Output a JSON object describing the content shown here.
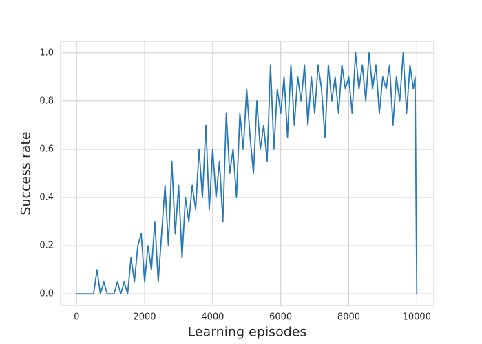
{
  "chart_data": {
    "type": "line",
    "x_label": "Learning episodes",
    "y_label": "Success rate",
    "x": [
      0,
      100,
      200,
      300,
      400,
      500,
      600,
      700,
      800,
      900,
      1000,
      1100,
      1200,
      1300,
      1400,
      1500,
      1600,
      1700,
      1800,
      1900,
      2000,
      2100,
      2200,
      2300,
      2400,
      2500,
      2600,
      2700,
      2800,
      2900,
      3000,
      3100,
      3200,
      3300,
      3400,
      3500,
      3600,
      3700,
      3800,
      3900,
      4000,
      4100,
      4200,
      4300,
      4400,
      4500,
      4600,
      4700,
      4800,
      4900,
      5000,
      5100,
      5200,
      5300,
      5400,
      5500,
      5600,
      5700,
      5800,
      5900,
      6000,
      6100,
      6200,
      6300,
      6400,
      6500,
      6600,
      6700,
      6800,
      6900,
      7000,
      7100,
      7200,
      7300,
      7400,
      7500,
      7600,
      7700,
      7800,
      7900,
      8000,
      8100,
      8200,
      8300,
      8400,
      8500,
      8600,
      8700,
      8800,
      8900,
      9000,
      9100,
      9200,
      9300,
      9400,
      9500,
      9600,
      9700,
      9800,
      9900,
      9950,
      10000
    ],
    "series": [
      {
        "color": "#2878b5",
        "values": [
          0,
          0,
          0,
          0,
          0,
          0,
          0.1,
          0,
          0.05,
          0,
          0,
          0,
          0.05,
          0,
          0.05,
          0,
          0.15,
          0.05,
          0.2,
          0.25,
          0.05,
          0.2,
          0.1,
          0.3,
          0.05,
          0.25,
          0.45,
          0.2,
          0.55,
          0.25,
          0.45,
          0.15,
          0.4,
          0.3,
          0.45,
          0.35,
          0.6,
          0.4,
          0.7,
          0.35,
          0.6,
          0.4,
          0.55,
          0.3,
          0.75,
          0.5,
          0.6,
          0.4,
          0.75,
          0.6,
          0.85,
          0.65,
          0.5,
          0.8,
          0.6,
          0.7,
          0.55,
          0.95,
          0.6,
          0.85,
          0.75,
          0.9,
          0.65,
          0.95,
          0.7,
          0.9,
          0.8,
          0.95,
          0.7,
          0.9,
          0.75,
          0.95,
          0.85,
          0.65,
          0.95,
          0.8,
          0.9,
          0.75,
          0.95,
          0.85,
          0.9,
          0.75,
          1.0,
          0.85,
          0.95,
          0.8,
          1.0,
          0.85,
          0.95,
          0.75,
          0.9,
          0.85,
          0.95,
          0.7,
          0.9,
          0.8,
          1.0,
          0.75,
          0.95,
          0.85,
          0.9,
          0
        ]
      }
    ],
    "xlim": [
      -470,
      10500
    ],
    "ylim": [
      -0.048,
      1.048
    ],
    "xticks": [
      0,
      2000,
      4000,
      6000,
      8000,
      10000
    ],
    "yticks": [
      {
        "value": 0,
        "label": "0.0"
      },
      {
        "value": 0.2,
        "label": "0.2"
      },
      {
        "value": 0.4,
        "label": "0.4"
      },
      {
        "value": 0.6,
        "label": "0.6"
      },
      {
        "value": 0.8,
        "label": "0.8"
      },
      {
        "value": 1,
        "label": "1.0"
      }
    ],
    "grid": true
  }
}
